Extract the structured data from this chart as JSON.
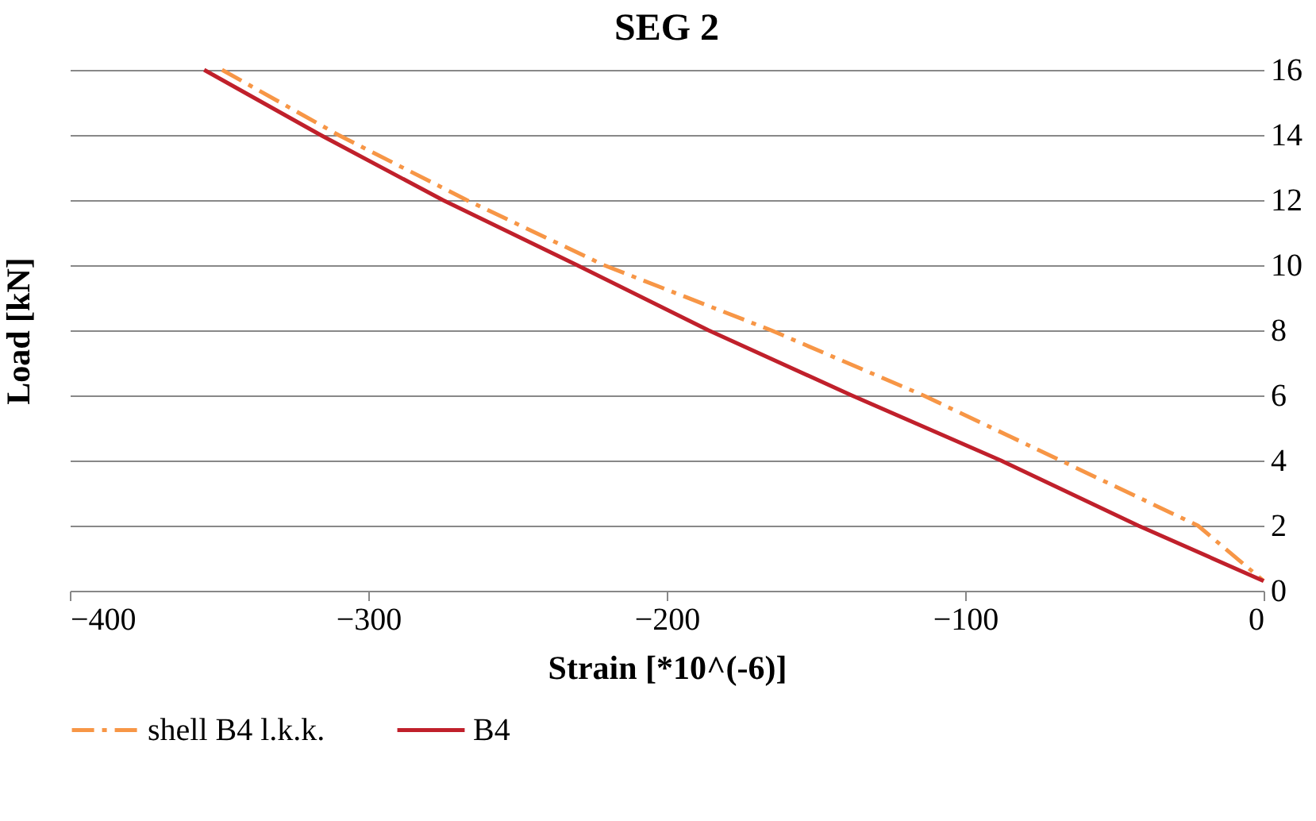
{
  "chart_data": {
    "type": "line",
    "title": "SEG 2",
    "xlabel": "Strain [*10^(-6)]",
    "ylabel": "Load [kN]",
    "xlim": [
      -400,
      0
    ],
    "xticks": [
      -400,
      -300,
      -200,
      -100,
      0
    ],
    "ylim": [
      0,
      16
    ],
    "yticks": [
      0,
      2,
      4,
      6,
      8,
      10,
      12,
      14,
      16
    ],
    "grid": "y",
    "legend": "bottom",
    "marker": "none",
    "series": [
      {
        "name": "shell B4 l.k.k.",
        "color": "#f79646",
        "line_style": "dashed",
        "x": [
          -349,
          -310,
          -267,
          -221,
          -165,
          -114,
          -68,
          -22,
          0
        ],
        "values": [
          16,
          14,
          12,
          10,
          8,
          6,
          4,
          2,
          0.3
        ]
      },
      {
        "name": "B4",
        "color": "#c0202b",
        "line_style": "solid",
        "x": [
          -355,
          -316,
          -275,
          -230,
          -186,
          -138,
          -88,
          -42,
          0
        ],
        "values": [
          16,
          14,
          12,
          10,
          8,
          6,
          4,
          2,
          0.3
        ]
      }
    ]
  }
}
